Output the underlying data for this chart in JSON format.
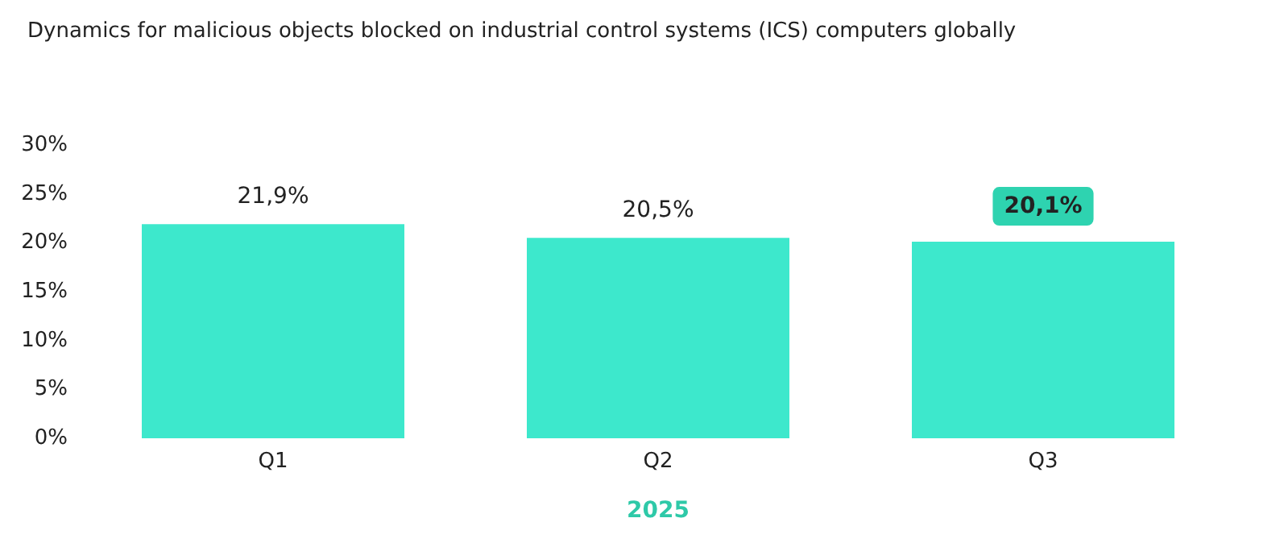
{
  "chart_data": {
    "type": "bar",
    "title": "Dynamics for malicious objects blocked on industrial control systems (ICS) computers globally",
    "xlabel": "2025",
    "categories": [
      "Q1",
      "Q2",
      "Q3"
    ],
    "values": [
      21.9,
      20.5,
      20.1
    ],
    "color": "#3de8cc",
    "value_labels": [
      "21,9%",
      "20,5%",
      "20,1%"
    ],
    "ylim": [
      0,
      30
    ],
    "yticks": [
      {
        "value": 0,
        "label": "0%"
      },
      {
        "value": 5,
        "label": "5%"
      },
      {
        "value": 10,
        "label": "10%"
      },
      {
        "value": 15,
        "label": "15%"
      },
      {
        "value": 20,
        "label": "20%"
      },
      {
        "value": 25,
        "label": "25%"
      },
      {
        "value": 30,
        "label": "30%"
      }
    ],
    "grid": false
  }
}
